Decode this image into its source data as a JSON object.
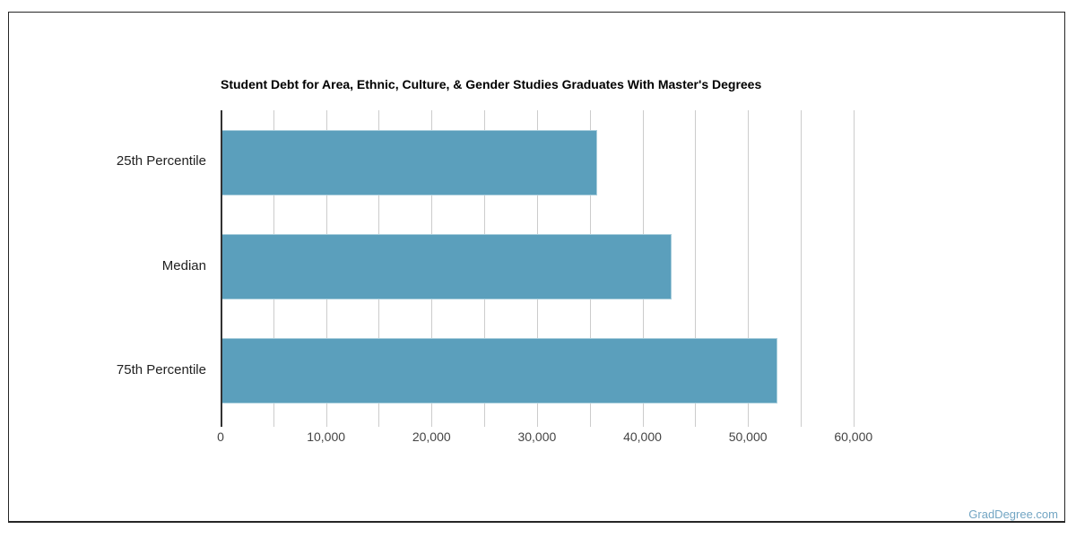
{
  "chart_data": {
    "type": "bar",
    "orientation": "horizontal",
    "title": "Student Debt for Area, Ethnic, Culture, & Gender Studies Graduates With Master's Degrees",
    "categories": [
      "25th Percentile",
      "Median",
      "75th Percentile"
    ],
    "values": [
      35600,
      42700,
      52750
    ],
    "xlabel": "",
    "ylabel": "",
    "xlim": [
      0,
      67500
    ],
    "x_ticks": [
      0,
      10000,
      20000,
      30000,
      40000,
      50000,
      60000
    ],
    "x_tick_labels": [
      "0",
      "10,000",
      "20,000",
      "30,000",
      "40,000",
      "50,000",
      "60,000"
    ],
    "grid": true,
    "minor_grid_step": 5000,
    "legend_position": "none",
    "bar_color": "#5B9FBC",
    "bar_border_color": "#A9CEDC",
    "gridline_color": "#CCCCCC",
    "axis_line_color": "#333333",
    "title_color": "#000000",
    "tick_label_color": "#444444",
    "category_label_color": "#222222"
  },
  "frame": {
    "border_color": "#262626"
  },
  "watermark": {
    "text": "GradDegree.com",
    "color": "#72A5C3"
  }
}
